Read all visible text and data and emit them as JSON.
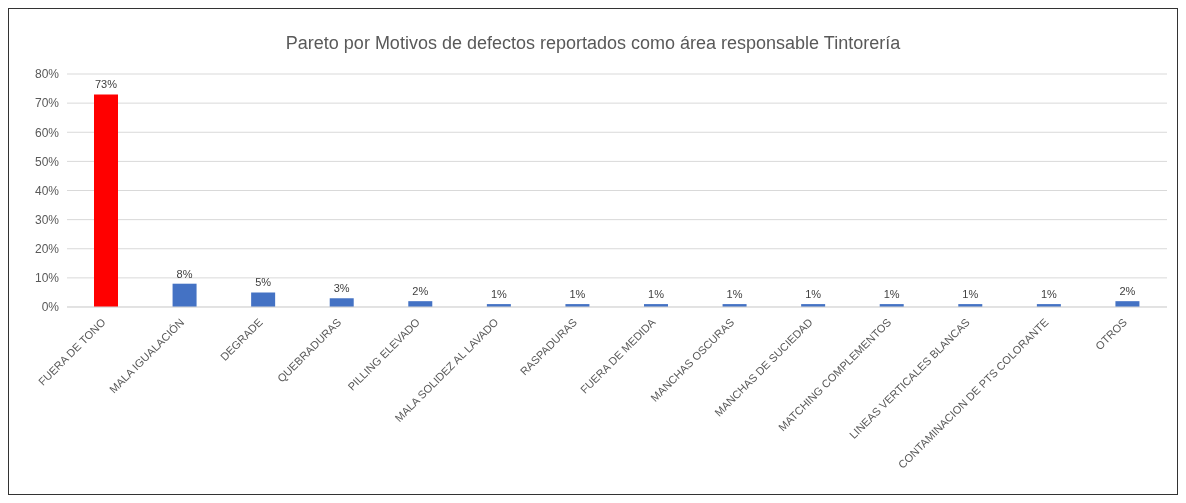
{
  "chart_data": {
    "type": "bar",
    "title": "Pareto por Motivos de defectos reportados como área responsable Tintorería",
    "categories": [
      "FUERA DE TONO",
      "MALA IGUALACIÓN",
      "DEGRADE",
      "QUEBRADURAS",
      "PILLING ELEVADO",
      "MALA SOLIDEZ AL LAVADO",
      "RASPADURAS",
      "FUERA DE MEDIDA",
      "MANCHAS OSCURAS",
      "MANCHAS DE SUCIEDAD",
      "MATCHING COMPLEMENTOS",
      "LINEAS VERTICALES BLANCAS",
      "CONTAMINACION  DE PTS COLORANTE",
      "OTROS"
    ],
    "values": [
      73,
      8,
      5,
      3,
      2,
      1,
      1,
      1,
      1,
      1,
      1,
      1,
      1,
      2
    ],
    "colors": [
      "#ff0000",
      "#4472c4",
      "#4472c4",
      "#4472c4",
      "#4472c4",
      "#4472c4",
      "#4472c4",
      "#4472c4",
      "#4472c4",
      "#4472c4",
      "#4472c4",
      "#4472c4",
      "#4472c4",
      "#4472c4"
    ],
    "value_labels": [
      "73%",
      "8%",
      "5%",
      "3%",
      "2%",
      "1%",
      "1%",
      "1%",
      "1%",
      "1%",
      "1%",
      "1%",
      "1%",
      "2%"
    ],
    "ylim": [
      0,
      80
    ],
    "yticks": [
      {
        "value": 0,
        "label": "0%"
      },
      {
        "value": 10,
        "label": "10%"
      },
      {
        "value": 20,
        "label": "20%"
      },
      {
        "value": 30,
        "label": "30%"
      },
      {
        "value": 40,
        "label": "40%"
      },
      {
        "value": 50,
        "label": "50%"
      },
      {
        "value": 60,
        "label": "60%"
      },
      {
        "value": 70,
        "label": "70%"
      },
      {
        "value": 80,
        "label": "80%"
      }
    ],
    "grid": "y",
    "legend": false
  }
}
